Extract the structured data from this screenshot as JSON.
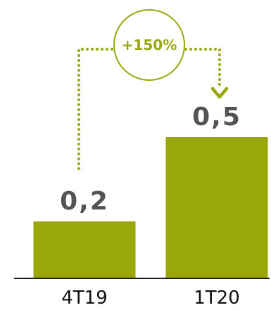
{
  "colors": {
    "bar": "#9AA70B",
    "label": "#545454",
    "axis": "#1f1f1f",
    "category": "#111111"
  },
  "chart_data": {
    "type": "bar",
    "categories": [
      "4T19",
      "1T20"
    ],
    "values": [
      0.2,
      0.5
    ],
    "value_labels": [
      "0,2",
      "0,5"
    ],
    "ylim": [
      0,
      0.5
    ],
    "grid": false,
    "annotation": {
      "text": "+150%",
      "from": "4T19",
      "to": "1T20",
      "style": "dotted-arrow-with-circle"
    }
  }
}
